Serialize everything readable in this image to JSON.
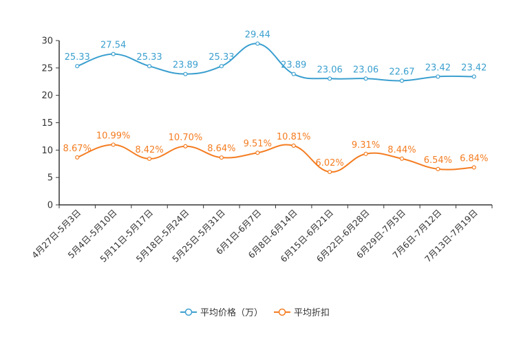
{
  "chart_data": {
    "type": "line",
    "title": "",
    "xlabel": "",
    "ylabel": "",
    "ylim": [
      0,
      30
    ],
    "yticks": [
      0,
      5,
      10,
      15,
      20,
      25,
      30
    ],
    "grid": false,
    "legend_position": "bottom-center",
    "categories": [
      "4月27日-5月3日",
      "5月4日-5月10日",
      "5月11日-5月17日",
      "5月18日-5月24日",
      "5月25日-5月31日",
      "6月1日-6月7日",
      "6月8日-6月14日",
      "6月15日-6月21日",
      "6月22日-6月28日",
      "6月29日-7月5日",
      "7月6日-7月12日",
      "7月13日-7月19日"
    ],
    "series": [
      {
        "name": "平均价格（万）",
        "color": "#3a9fcf",
        "values": [
          25.33,
          27.54,
          25.33,
          23.89,
          25.33,
          29.44,
          23.89,
          23.06,
          23.06,
          22.67,
          23.42,
          23.42
        ],
        "labels": [
          "25.33",
          "27.54",
          "25.33",
          "23.89",
          "25.33",
          "29.44",
          "23.89",
          "23.06",
          "23.06",
          "22.67",
          "23.42",
          "23.42"
        ]
      },
      {
        "name": "平均折扣",
        "color": "#f47c20",
        "values": [
          8.67,
          10.99,
          8.42,
          10.7,
          8.64,
          9.51,
          10.81,
          6.02,
          9.31,
          8.44,
          6.54,
          6.84
        ],
        "labels": [
          "8.67%",
          "10.99%",
          "8.42%",
          "10.70%",
          "8.64%",
          "9.51%",
          "10.81%",
          "6.02%",
          "9.31%",
          "8.44%",
          "6.54%",
          "6.84%"
        ]
      }
    ]
  }
}
